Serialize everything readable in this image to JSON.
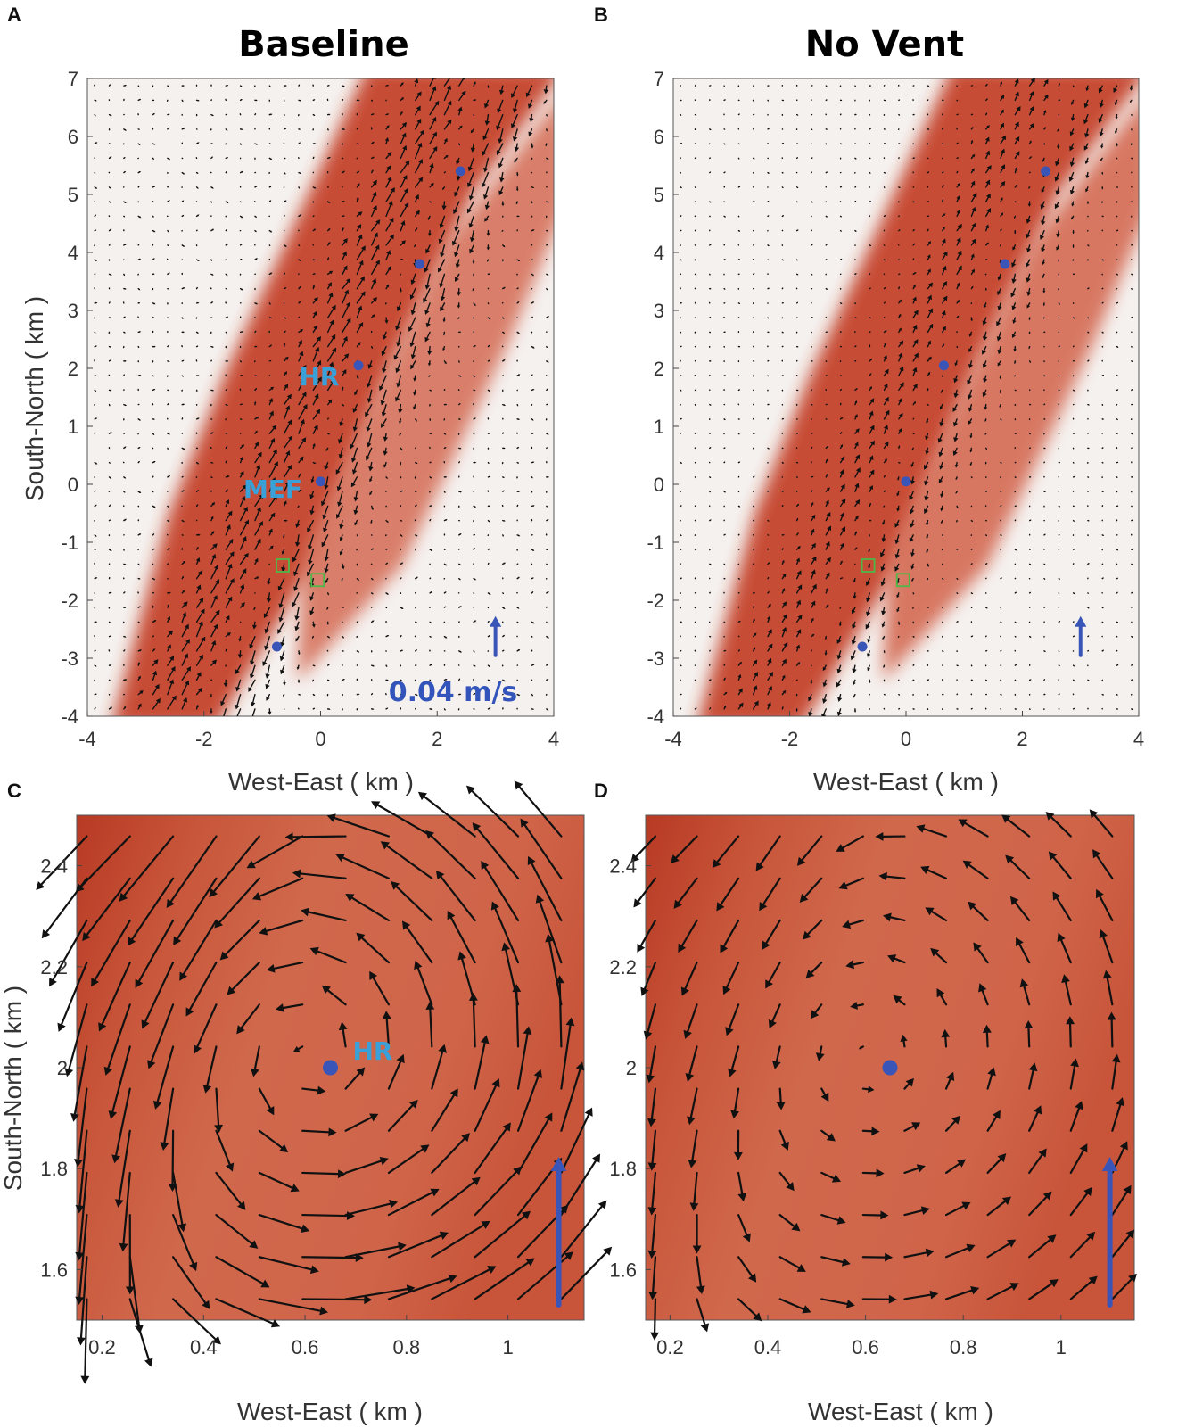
{
  "panel_letters": [
    "A",
    "B",
    "C",
    "D"
  ],
  "colors": {
    "background": "#f5f1ef",
    "plume_core": "#c23a22",
    "plume_mid": "#d46a52",
    "vector": "#111111",
    "site_marker": "#3a55b8",
    "site_label": "#3aa0d8",
    "box_marker": "#4db848",
    "reference_arrow": "#3a55b8"
  },
  "chart_data": [
    {
      "panel": "A",
      "type": "quiver",
      "title": "Baseline",
      "xlabel": "West-East ( km )",
      "ylabel": "South-North ( km )",
      "xlim": [
        -4,
        4
      ],
      "ylim": [
        -4,
        7
      ],
      "xticks": [
        "-4",
        "-2",
        "0",
        "2",
        "4"
      ],
      "yticks": [
        "-4",
        "-3",
        "-2",
        "-1",
        "0",
        "1",
        "2",
        "3",
        "4",
        "5",
        "6",
        "7"
      ],
      "sites": [
        {
          "x": 2.4,
          "y": 5.4,
          "label": ""
        },
        {
          "x": 1.7,
          "y": 3.8,
          "label": ""
        },
        {
          "x": 0.65,
          "y": 2.05,
          "label": "HR"
        },
        {
          "x": 0.0,
          "y": 0.05,
          "label": "MEF"
        },
        {
          "x": -0.75,
          "y": -2.8,
          "label": ""
        }
      ],
      "boxes": [
        {
          "x": -0.65,
          "y": -1.4
        },
        {
          "x": -0.05,
          "y": -1.65
        }
      ],
      "reference_vector": {
        "value_label": "0.04 m/s",
        "x": 3.0,
        "y": -2.95
      }
    },
    {
      "panel": "B",
      "type": "quiver",
      "title": "No Vent",
      "xlabel": "West-East ( km )",
      "ylabel": "",
      "xlim": [
        -4,
        4
      ],
      "ylim": [
        -4,
        7
      ],
      "xticks": [
        "-4",
        "-2",
        "0",
        "2",
        "4"
      ],
      "yticks": [
        "-4",
        "-3",
        "-2",
        "-1",
        "0",
        "1",
        "2",
        "3",
        "4",
        "5",
        "6",
        "7"
      ],
      "sites": [
        {
          "x": 2.4,
          "y": 5.4,
          "label": ""
        },
        {
          "x": 1.7,
          "y": 3.8,
          "label": ""
        },
        {
          "x": 0.65,
          "y": 2.05,
          "label": ""
        },
        {
          "x": 0.0,
          "y": 0.05,
          "label": ""
        },
        {
          "x": -0.75,
          "y": -2.8,
          "label": ""
        }
      ],
      "boxes": [
        {
          "x": -0.65,
          "y": -1.4
        },
        {
          "x": -0.05,
          "y": -1.65
        }
      ],
      "reference_vector": {
        "value_label": "",
        "x": 3.0,
        "y": -2.95
      }
    },
    {
      "panel": "C",
      "type": "quiver",
      "title": "",
      "xlabel": "West-East ( km )",
      "ylabel": "South-North ( km )",
      "xlim": [
        0.15,
        1.15
      ],
      "ylim": [
        1.5,
        2.5
      ],
      "xticks": [
        "0.2",
        "0.4",
        "0.6",
        "0.8",
        "1"
      ],
      "yticks": [
        "1.6",
        "1.8",
        "2",
        "2.2",
        "2.4"
      ],
      "sites": [
        {
          "x": 0.65,
          "y": 2.0,
          "label": "HR"
        }
      ],
      "boxes": [],
      "reference_vector": {
        "value_label": "",
        "x": 1.1,
        "y": 1.53
      }
    },
    {
      "panel": "D",
      "type": "quiver",
      "title": "",
      "xlabel": "West-East ( km )",
      "ylabel": "",
      "xlim": [
        0.15,
        1.15
      ],
      "ylim": [
        1.5,
        2.5
      ],
      "xticks": [
        "0.2",
        "0.4",
        "0.6",
        "0.8",
        "1"
      ],
      "yticks": [
        "1.6",
        "1.8",
        "2",
        "2.2",
        "2.4"
      ],
      "sites": [
        {
          "x": 0.65,
          "y": 2.0,
          "label": ""
        }
      ],
      "boxes": [],
      "reference_vector": {
        "value_label": "",
        "x": 1.1,
        "y": 1.53
      }
    }
  ]
}
